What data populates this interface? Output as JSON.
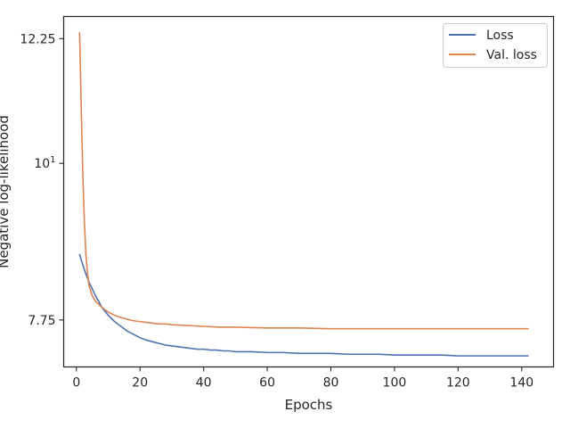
{
  "chart_data": {
    "type": "line",
    "xlabel": "Epochs",
    "ylabel": "Negative log-likelihood",
    "xlim": [
      -4,
      150
    ],
    "ylim": [
      7.18,
      12.7
    ],
    "yscale": "log",
    "grid": false,
    "legend": {
      "placement": "top-right"
    },
    "x_ticks": [
      {
        "value": 0,
        "label": "0"
      },
      {
        "value": 20,
        "label": "20"
      },
      {
        "value": 40,
        "label": "40"
      },
      {
        "value": 60,
        "label": "60"
      },
      {
        "value": 80,
        "label": "80"
      },
      {
        "value": 100,
        "label": "100"
      },
      {
        "value": 120,
        "label": "120"
      },
      {
        "value": 140,
        "label": "140"
      }
    ],
    "y_ticks": [
      {
        "value": 7.75,
        "label": "7.75"
      },
      {
        "value": 10,
        "label": "10",
        "sup": "1"
      },
      {
        "value": 12.25,
        "label": "12.25"
      }
    ],
    "series": [
      {
        "name": "Loss",
        "color": "#4c72b0",
        "x": [
          1,
          2,
          3,
          4,
          5,
          6,
          7,
          8,
          9,
          10,
          12,
          14,
          16,
          18,
          20,
          22,
          24,
          26,
          28,
          30,
          32,
          34,
          36,
          38,
          40,
          42,
          44,
          46,
          48,
          50,
          55,
          60,
          65,
          70,
          75,
          80,
          85,
          90,
          95,
          100,
          105,
          110,
          115,
          120,
          125,
          130,
          135,
          140,
          142
        ],
        "y": [
          8.62,
          8.48,
          8.35,
          8.24,
          8.15,
          8.06,
          7.99,
          7.91,
          7.86,
          7.81,
          7.73,
          7.67,
          7.61,
          7.57,
          7.53,
          7.5,
          7.48,
          7.46,
          7.44,
          7.43,
          7.42,
          7.41,
          7.4,
          7.39,
          7.39,
          7.38,
          7.38,
          7.37,
          7.37,
          7.36,
          7.36,
          7.35,
          7.35,
          7.34,
          7.34,
          7.34,
          7.33,
          7.33,
          7.33,
          7.32,
          7.32,
          7.32,
          7.32,
          7.31,
          7.31,
          7.31,
          7.31,
          7.31,
          7.31
        ]
      },
      {
        "name": "Val. loss",
        "color": "#dd8452",
        "x": [
          1,
          1.5,
          2,
          2.5,
          3,
          3.5,
          4,
          5,
          6,
          7,
          8,
          10,
          12,
          14,
          16,
          18,
          20,
          22,
          24,
          26,
          28,
          30,
          35,
          40,
          45,
          50,
          60,
          70,
          80,
          90,
          100,
          110,
          120,
          130,
          142
        ],
        "y": [
          12.37,
          11.0,
          9.85,
          9.1,
          8.62,
          8.35,
          8.19,
          8.06,
          7.99,
          7.95,
          7.91,
          7.85,
          7.81,
          7.78,
          7.76,
          7.74,
          7.73,
          7.72,
          7.71,
          7.7,
          7.7,
          7.69,
          7.68,
          7.67,
          7.66,
          7.66,
          7.65,
          7.65,
          7.64,
          7.64,
          7.64,
          7.64,
          7.64,
          7.64,
          7.64
        ]
      }
    ]
  }
}
